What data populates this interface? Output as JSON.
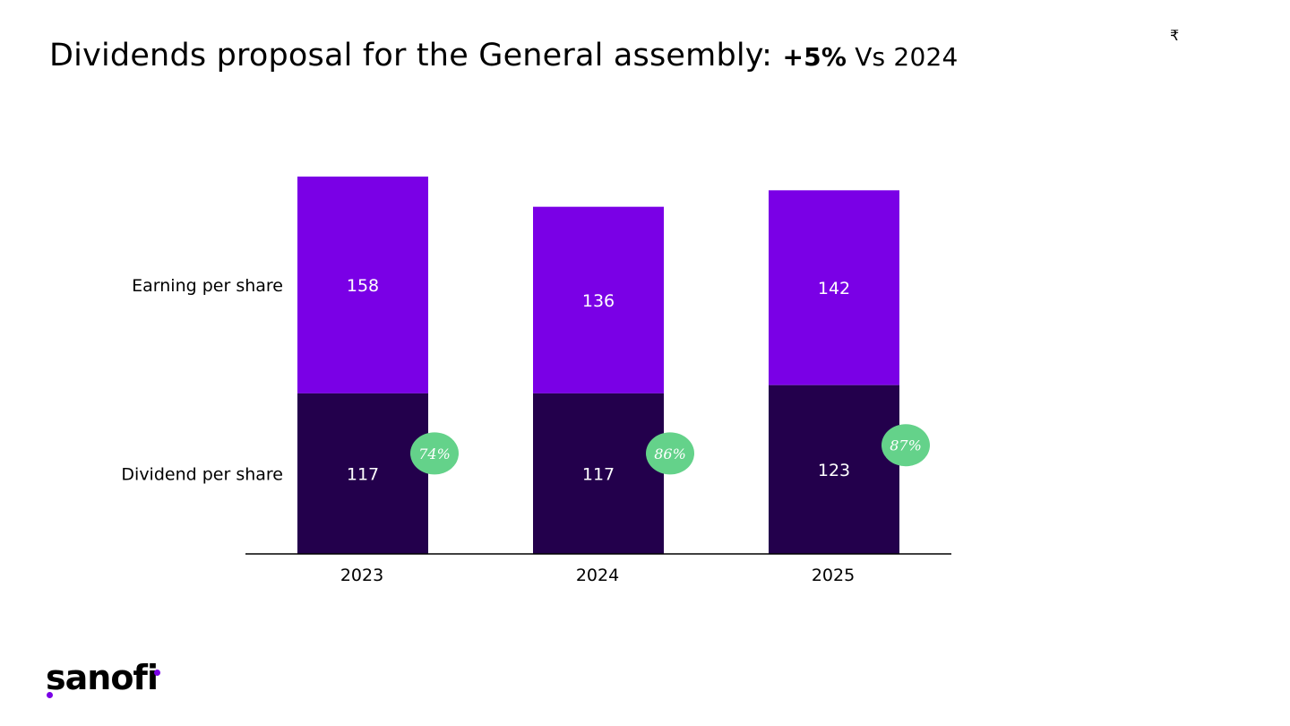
{
  "slide": {
    "title_main": "Dividends proposal for the General assembly: ",
    "title_highlight": "+5%",
    "title_suffix": " Vs 2024",
    "currency_symbol": "₹",
    "logo_text": "sanofi"
  },
  "colors": {
    "accent": "#7a00e6",
    "dark": "#23004c",
    "bubble": "#64d28a",
    "text": "#000000",
    "bar_label": "#ffffff"
  },
  "chart_data": {
    "type": "bar",
    "stacked": true,
    "categories": [
      "2023",
      "2024",
      "2025"
    ],
    "series": [
      {
        "name": "Dividend per share",
        "values": [
          117,
          117,
          123
        ]
      },
      {
        "name": "Earning per share",
        "values": [
          158,
          136,
          142
        ]
      }
    ],
    "payout_labels": [
      "74%",
      "86%",
      "87%"
    ],
    "ylim": [
      0,
      275
    ],
    "title": "",
    "xlabel": "",
    "ylabel": ""
  }
}
